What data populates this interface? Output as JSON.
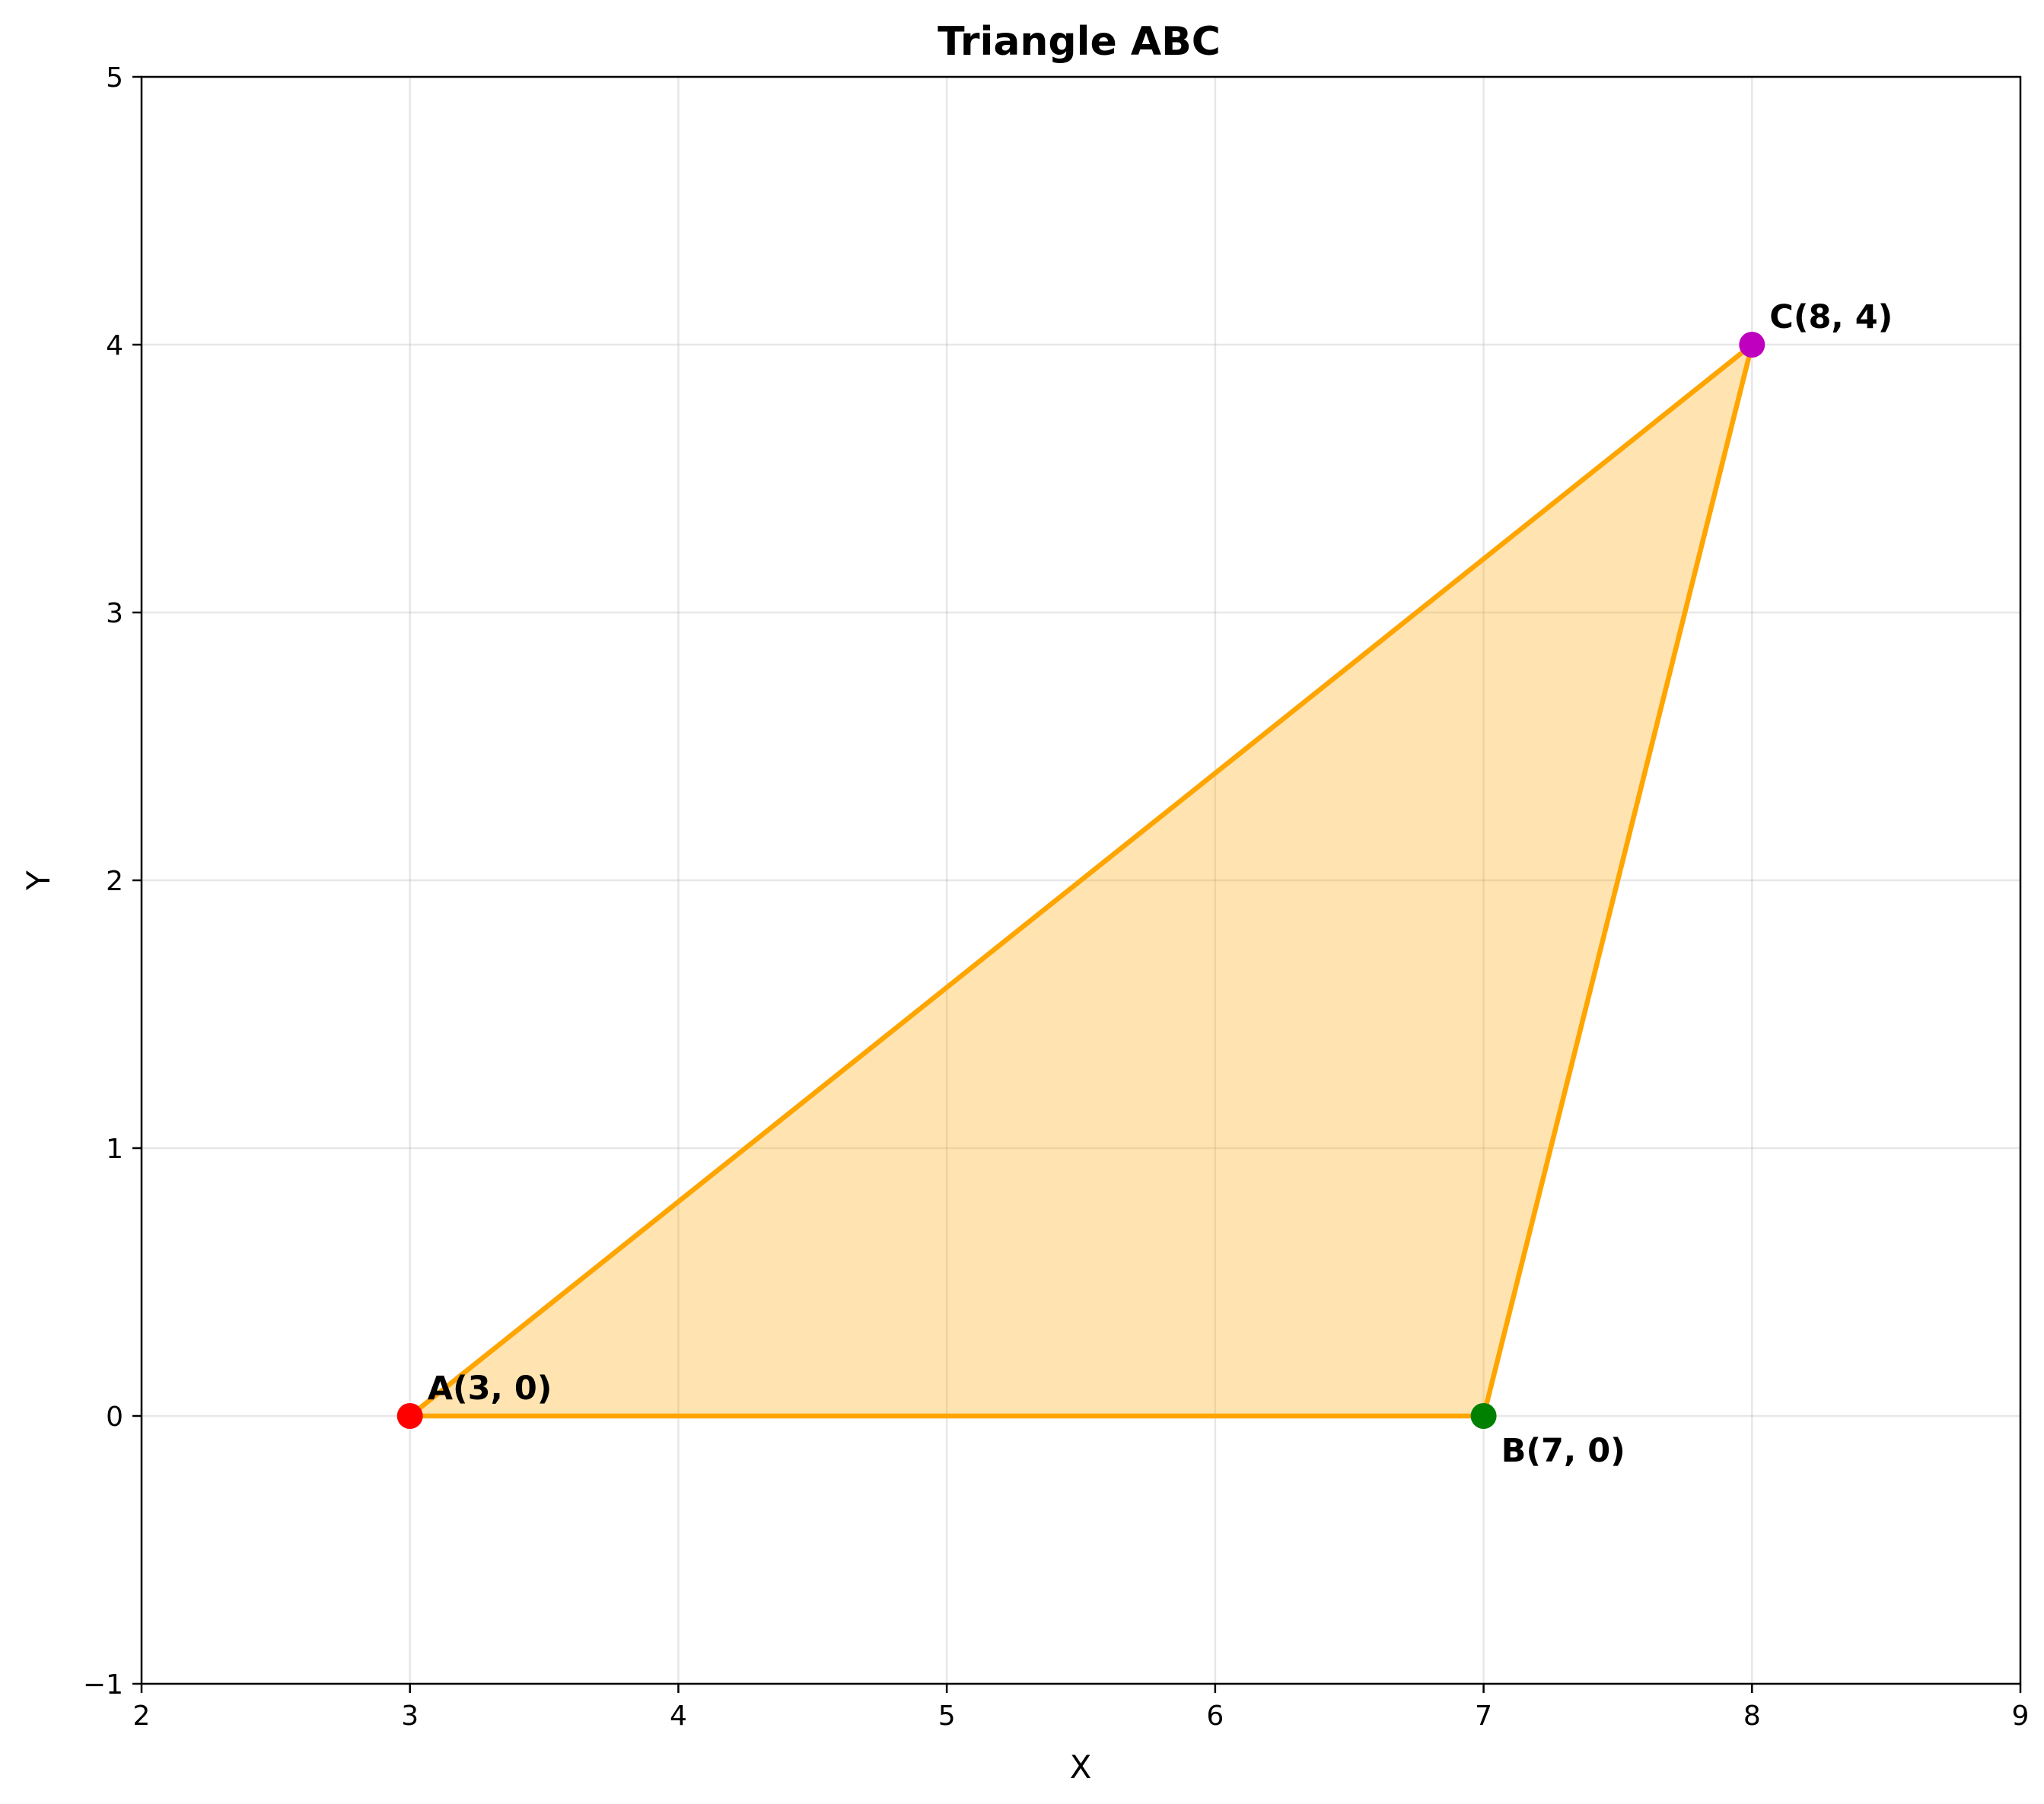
{
  "chart_data": {
    "type": "scatter",
    "title": "Triangle ABC",
    "xlabel": "X",
    "ylabel": "Y",
    "xlim": [
      2,
      9
    ],
    "ylim": [
      -1,
      5
    ],
    "xticks": [
      2,
      3,
      4,
      5,
      6,
      7,
      8,
      9
    ],
    "yticks": [
      -1,
      0,
      1,
      2,
      3,
      4,
      5
    ],
    "grid": true,
    "points": [
      {
        "label": "A(3, 0)",
        "x": 3,
        "y": 0,
        "color": "#ff0000"
      },
      {
        "label": "B(7, 0)",
        "x": 7,
        "y": 0,
        "color": "#008000"
      },
      {
        "label": "C(8, 4)",
        "x": 8,
        "y": 4,
        "color": "#bf00bf"
      }
    ],
    "polygon": {
      "vertices": [
        [
          3,
          0
        ],
        [
          7,
          0
        ],
        [
          8,
          4
        ]
      ],
      "edge_color": "#ffa500",
      "fill_color": "#ffa500",
      "fill_opacity": 0.3
    }
  }
}
